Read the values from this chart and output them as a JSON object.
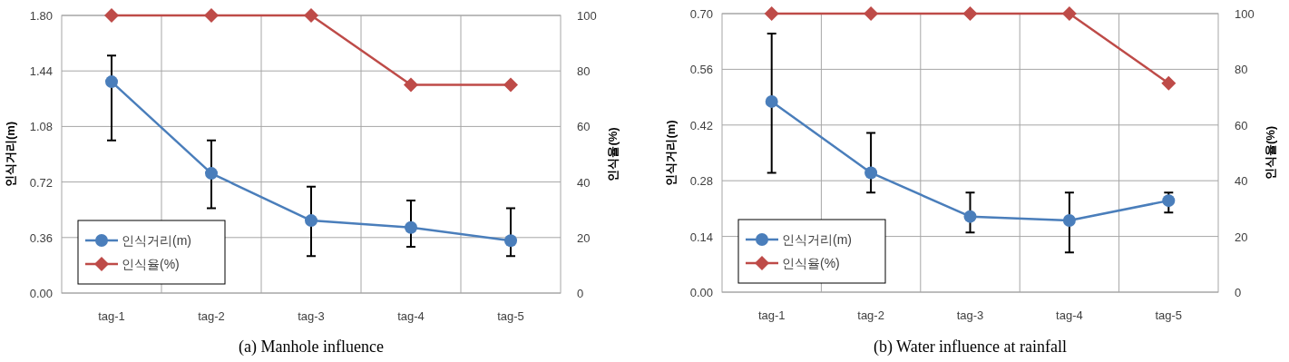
{
  "chart_data": [
    {
      "type": "line",
      "title": "(a) Manhole influence",
      "ylabel": "인식거리(m)",
      "y2label": "인식율(%)",
      "categories": [
        "tag-1",
        "tag-2",
        "tag-3",
        "tag-4",
        "tag-5"
      ],
      "series": [
        {
          "name": "인식거리(m)",
          "color": "#4a7ebb",
          "marker": "circle",
          "values": [
            1.37,
            0.776,
            0.47,
            0.425,
            0.34
          ],
          "errors": [
            [
              0.99,
              1.54
            ],
            [
              0.55,
              0.99
            ],
            [
              0.24,
              0.69
            ],
            [
              0.3,
              0.6
            ],
            [
              0.24,
              0.55
            ]
          ]
        },
        {
          "name": "인식율(%)",
          "color": "#be4b48",
          "marker": "diamond",
          "axis": "y2",
          "values": [
            100,
            100,
            100,
            75,
            75
          ]
        }
      ],
      "ylim": [
        0,
        1.8
      ],
      "yticks": [
        {
          "value": 0,
          "label": "0.00"
        },
        {
          "value": 0.36,
          "label": "0.36"
        },
        {
          "value": 0.72,
          "label": "0.72"
        },
        {
          "value": 1.08,
          "label": "1.08"
        },
        {
          "value": 1.44,
          "label": "1.44"
        },
        {
          "value": 1.8,
          "label": "1.80"
        }
      ],
      "y2lim": [
        0,
        100
      ],
      "y2ticks": [
        0,
        20,
        40,
        60,
        80,
        100
      ],
      "grid": true,
      "legend": "bottom left"
    },
    {
      "type": "line",
      "title": "(b) Water influence at rainfall",
      "ylabel": "인식거리(m)",
      "y2label": "인식율(%)",
      "categories": [
        "tag-1",
        "tag-2",
        "tag-3",
        "tag-4",
        "tag-5"
      ],
      "series": [
        {
          "name": "인식거리(m)",
          "color": "#4a7ebb",
          "marker": "circle",
          "values": [
            0.479,
            0.3,
            0.19,
            0.18,
            0.23
          ],
          "errors": [
            [
              0.3,
              0.65
            ],
            [
              0.25,
              0.4
            ],
            [
              0.15,
              0.25
            ],
            [
              0.1,
              0.25
            ],
            [
              0.2,
              0.25
            ]
          ]
        },
        {
          "name": "인식율(%)",
          "color": "#be4b48",
          "marker": "diamond",
          "axis": "y2",
          "values": [
            100,
            100,
            100,
            100,
            75
          ]
        }
      ],
      "ylim": [
        0,
        0.7
      ],
      "yticks": [
        {
          "value": 0,
          "label": "0.00"
        },
        {
          "value": 0.14,
          "label": "0.14"
        },
        {
          "value": 0.28,
          "label": "0.28"
        },
        {
          "value": 0.42,
          "label": "0.42"
        },
        {
          "value": 0.56,
          "label": "0.56"
        },
        {
          "value": 0.7,
          "label": "0.70"
        }
      ],
      "y2lim": [
        0,
        100
      ],
      "y2ticks": [
        0,
        20,
        40,
        60,
        80,
        100
      ],
      "grid": true,
      "legend": "bottom left"
    }
  ]
}
